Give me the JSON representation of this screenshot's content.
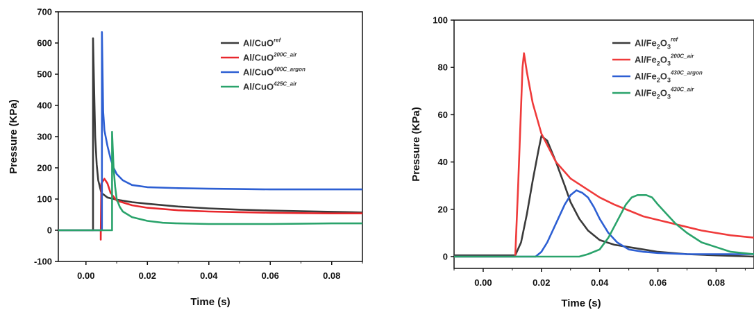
{
  "chart_data": [
    {
      "type": "line",
      "title": "",
      "xlabel": "Time (s)",
      "ylabel": "Pressure (KPa)",
      "xlim": [
        -0.009,
        0.09
      ],
      "ylim": [
        -100,
        700
      ],
      "xticks": [
        "0.00",
        "0.02",
        "0.04",
        "0.06",
        "0.08"
      ],
      "yticks": [
        "-100",
        "0",
        "100",
        "200",
        "300",
        "400",
        "500",
        "600",
        "700"
      ],
      "legend_position": "top-right",
      "series": [
        {
          "name": "Al/CuO",
          "label_sup": "ref",
          "color": "#3a3a3a",
          "x": [
            -0.009,
            0.0023,
            0.0023,
            0.0026,
            0.003,
            0.0035,
            0.004,
            0.005,
            0.007,
            0.01,
            0.015,
            0.02,
            0.03,
            0.04,
            0.05,
            0.06,
            0.07,
            0.08,
            0.09
          ],
          "y": [
            0,
            0,
            615,
            480,
            300,
            210,
            160,
            120,
            105,
            98,
            90,
            85,
            76,
            70,
            66,
            63,
            61,
            59,
            57
          ]
        },
        {
          "name": "Al/CuO",
          "label_sup": "200C_air",
          "color": "#e8272c",
          "x": [
            -0.009,
            0.0048,
            0.0048,
            0.005,
            0.006,
            0.007,
            0.008,
            0.01,
            0.015,
            0.02,
            0.03,
            0.04,
            0.05,
            0.06,
            0.07,
            0.08,
            0.09
          ],
          "y": [
            0,
            0,
            -30,
            150,
            165,
            150,
            120,
            95,
            80,
            72,
            64,
            60,
            58,
            56,
            55,
            54,
            54
          ]
        },
        {
          "name": "Al/CuO",
          "label_sup": "400C_argon",
          "color": "#2d5fd3",
          "x": [
            -0.009,
            0.0052,
            0.0052,
            0.0056,
            0.006,
            0.007,
            0.008,
            0.009,
            0.01,
            0.012,
            0.015,
            0.02,
            0.03,
            0.04,
            0.05,
            0.06,
            0.07,
            0.08,
            0.09
          ],
          "y": [
            0,
            0,
            635,
            380,
            320,
            270,
            230,
            200,
            180,
            160,
            145,
            138,
            135,
            133,
            132,
            131,
            131,
            131,
            131
          ]
        },
        {
          "name": "Al/CuO",
          "label_sup": "425C_air",
          "color": "#2aa36b",
          "x": [
            -0.009,
            0.0085,
            0.0085,
            0.009,
            0.0095,
            0.01,
            0.011,
            0.012,
            0.015,
            0.02,
            0.025,
            0.03,
            0.04,
            0.05,
            0.06,
            0.07,
            0.08,
            0.09
          ],
          "y": [
            0,
            0,
            315,
            200,
            140,
            100,
            75,
            60,
            42,
            30,
            24,
            22,
            20,
            20,
            20,
            21,
            22,
            22
          ]
        }
      ]
    },
    {
      "type": "line",
      "title": "",
      "xlabel": "Time (s)",
      "ylabel": "Pressure (KPa)",
      "xlim": [
        -0.01,
        0.093
      ],
      "ylim": [
        -5,
        100
      ],
      "xticks": [
        "0.00",
        "0.02",
        "0.04",
        "0.06",
        "0.08"
      ],
      "yticks": [
        "0",
        "20",
        "40",
        "60",
        "80",
        "100"
      ],
      "legend_position": "top-right",
      "series": [
        {
          "name": "Al/Fe",
          "label_sub": "2",
          "label_mid": "O",
          "label_sub2": "3",
          "label_sup": "ref",
          "color": "#3a3a3a",
          "x": [
            -0.01,
            0.011,
            0.013,
            0.015,
            0.017,
            0.019,
            0.02,
            0.022,
            0.025,
            0.028,
            0.03,
            0.033,
            0.036,
            0.04,
            0.045,
            0.05,
            0.055,
            0.06,
            0.07,
            0.08,
            0.093
          ],
          "y": [
            0.5,
            0.5,
            6,
            18,
            32,
            45,
            51,
            49,
            40,
            30,
            23,
            16,
            11,
            7,
            5,
            4,
            3,
            2,
            1,
            0.5,
            0
          ]
        },
        {
          "name": "Al/Fe",
          "label_sub": "2",
          "label_mid": "O",
          "label_sub2": "3",
          "label_sup": "200C_air",
          "color": "#ef3a3a",
          "x": [
            -0.01,
            0.011,
            0.012,
            0.0135,
            0.014,
            0.015,
            0.017,
            0.02,
            0.025,
            0.03,
            0.035,
            0.04,
            0.045,
            0.05,
            0.055,
            0.06,
            0.065,
            0.07,
            0.075,
            0.08,
            0.085,
            0.093
          ],
          "y": [
            0,
            0,
            30,
            80,
            86,
            78,
            65,
            52,
            40,
            33,
            29,
            25,
            22,
            19.5,
            17,
            15.5,
            14,
            12.5,
            11,
            10,
            9,
            8
          ]
        },
        {
          "name": "Al/Fe",
          "label_sub": "2",
          "label_mid": "O",
          "label_sub2": "3",
          "label_sup": "430C_argon",
          "color": "#2d5fd3",
          "x": [
            -0.01,
            0.018,
            0.02,
            0.022,
            0.025,
            0.028,
            0.03,
            0.032,
            0.034,
            0.036,
            0.038,
            0.04,
            0.043,
            0.046,
            0.05,
            0.055,
            0.06,
            0.07,
            0.08,
            0.093
          ],
          "y": [
            0,
            0,
            2,
            6,
            14,
            22,
            26,
            28,
            27,
            25,
            21,
            16,
            10,
            6,
            3,
            2,
            1.5,
            1,
            1,
            1
          ]
        },
        {
          "name": "Al/Fe",
          "label_sub": "2",
          "label_mid": "O",
          "label_sub2": "3",
          "label_sup": "430C_air",
          "color": "#2aa36b",
          "x": [
            -0.01,
            0.033,
            0.036,
            0.04,
            0.043,
            0.046,
            0.049,
            0.051,
            0.053,
            0.056,
            0.058,
            0.06,
            0.063,
            0.066,
            0.07,
            0.075,
            0.08,
            0.085,
            0.093
          ],
          "y": [
            0,
            0,
            1,
            3,
            8,
            15,
            22,
            25,
            26,
            26,
            25,
            22,
            18,
            14,
            10,
            6,
            4,
            2,
            1
          ]
        }
      ]
    }
  ]
}
